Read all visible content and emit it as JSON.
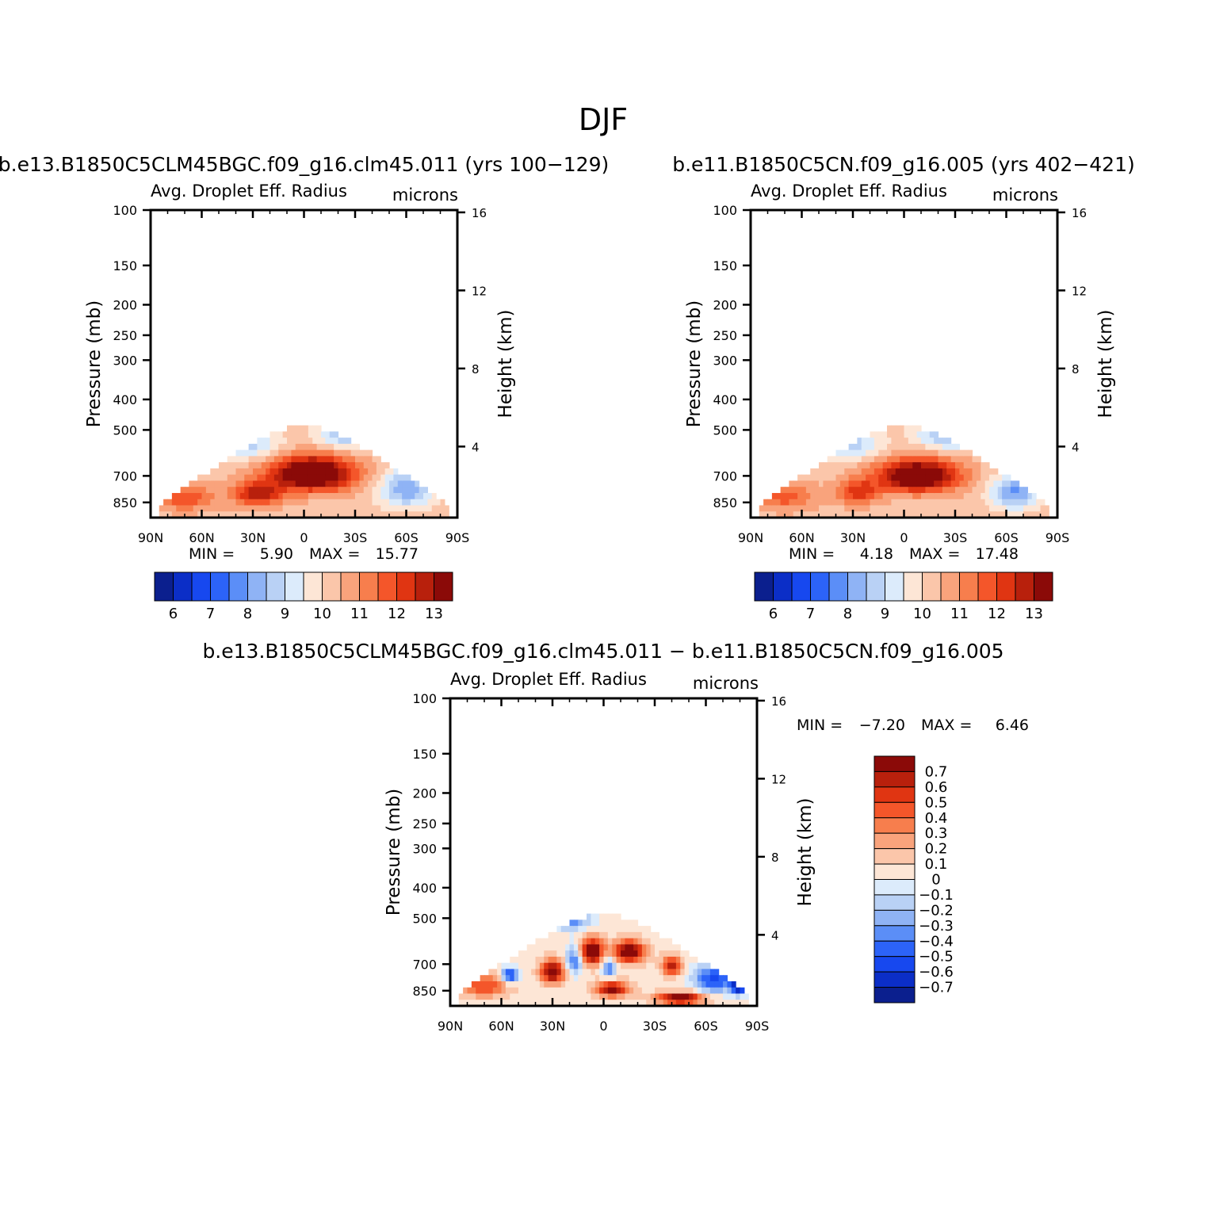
{
  "page_title": "DJF",
  "colors": {
    "main_scale": [
      "#0b1f8e",
      "#0b2ec7",
      "#1748ef",
      "#2c63f8",
      "#5b8ef7",
      "#8fb3f5",
      "#b9d1f5",
      "#dcebfb",
      "#fde6d6",
      "#fbc6aa",
      "#f9a37c",
      "#f77e4d",
      "#f4562a",
      "#e03512",
      "#b8200c",
      "#8b0a08"
    ],
    "diff_scale": [
      "#0b1f8e",
      "#0b2ec7",
      "#1748ef",
      "#2c63f8",
      "#5b8ef7",
      "#8fb3f5",
      "#b9d1f5",
      "#dcebfb",
      "#fde6d6",
      "#fbc6aa",
      "#f9a37c",
      "#f77e4d",
      "#f4562a",
      "#e03512",
      "#b8200c",
      "#8b0a08"
    ]
  },
  "chart_data": [
    {
      "type": "heatmap",
      "title": "b.e13.B1850C5CLM45BGC.f09_g16.clm45.011 (yrs 100−129)",
      "subtitle": "Avg. Droplet Eff. Radius",
      "units": "microns",
      "ylabel": "Pressure (mb)",
      "ylabel_right": "Height (km)",
      "xticks": [
        "90N",
        "60N",
        "30N",
        "0",
        "30S",
        "60S",
        "90S"
      ],
      "yticks": [
        "100",
        "150",
        "200",
        "250",
        "300",
        "400",
        "500",
        "700",
        "850"
      ],
      "yticks_right": [
        "16",
        "12",
        "8",
        "4"
      ],
      "xlim": [
        90,
        -90
      ],
      "ylim": [
        100,
        950
      ],
      "min_label": "MIN =",
      "min_value": "5.90",
      "max_label": "MAX =",
      "max_value": "15.77",
      "colorbar_labels": [
        "6",
        "7",
        "8",
        "9",
        "10",
        "11",
        "12",
        "13"
      ],
      "field": {
        "base": 10.3,
        "top_pressure": 480,
        "blobs": [
          {
            "lat": -5,
            "p": 690,
            "wl": 25,
            "wp": 90,
            "amp": 4.2
          },
          {
            "lat": 27,
            "p": 800,
            "wl": 14,
            "wp": 70,
            "amp": 2.6
          },
          {
            "lat": 70,
            "p": 820,
            "wl": 18,
            "wp": 80,
            "amp": 1.6
          },
          {
            "lat": -60,
            "p": 770,
            "wl": 16,
            "wp": 110,
            "amp": -2.2
          },
          {
            "lat": -25,
            "p": 520,
            "wl": 18,
            "wp": 60,
            "amp": -1.8
          },
          {
            "lat": 35,
            "p": 560,
            "wl": 22,
            "wp": 60,
            "amp": -1.6
          }
        ]
      }
    },
    {
      "type": "heatmap",
      "title": "b.e11.B1850C5CN.f09_g16.005 (yrs 402−421)",
      "subtitle": "Avg. Droplet Eff. Radius",
      "units": "microns",
      "ylabel": "Pressure (mb)",
      "ylabel_right": "Height (km)",
      "xticks": [
        "90N",
        "60N",
        "30N",
        "0",
        "30S",
        "60S",
        "90S"
      ],
      "yticks": [
        "100",
        "150",
        "200",
        "250",
        "300",
        "400",
        "500",
        "700",
        "850"
      ],
      "yticks_right": [
        "16",
        "12",
        "8",
        "4"
      ],
      "xlim": [
        90,
        -90
      ],
      "ylim": [
        100,
        950
      ],
      "min_label": "MIN =",
      "min_value": "4.18",
      "max_label": "MAX =",
      "max_value": "17.48",
      "colorbar_labels": [
        "6",
        "7",
        "8",
        "9",
        "10",
        "11",
        "12",
        "13"
      ],
      "field": {
        "base": 10.3,
        "top_pressure": 480,
        "blobs": [
          {
            "lat": -8,
            "p": 700,
            "wl": 24,
            "wp": 85,
            "amp": 4.0
          },
          {
            "lat": 27,
            "p": 790,
            "wl": 12,
            "wp": 70,
            "amp": 2.0
          },
          {
            "lat": 70,
            "p": 820,
            "wl": 18,
            "wp": 80,
            "amp": 1.4
          },
          {
            "lat": -65,
            "p": 790,
            "wl": 14,
            "wp": 100,
            "amp": -2.4
          },
          {
            "lat": -25,
            "p": 520,
            "wl": 18,
            "wp": 60,
            "amp": -1.9
          },
          {
            "lat": 35,
            "p": 560,
            "wl": 22,
            "wp": 60,
            "amp": -1.7
          }
        ]
      }
    },
    {
      "type": "heatmap",
      "title": "b.e13.B1850C5CLM45BGC.f09_g16.clm45.011 − b.e11.B1850C5CN.f09_g16.005",
      "subtitle": "Avg. Droplet Eff. Radius",
      "units": "microns",
      "ylabel": "Pressure (mb)",
      "ylabel_right": "Height (km)",
      "xticks": [
        "90N",
        "60N",
        "30N",
        "0",
        "30S",
        "60S",
        "90S"
      ],
      "yticks": [
        "100",
        "150",
        "200",
        "250",
        "300",
        "400",
        "500",
        "700",
        "850"
      ],
      "yticks_right": [
        "16",
        "12",
        "8",
        "4"
      ],
      "xlim": [
        90,
        -90
      ],
      "ylim": [
        100,
        950
      ],
      "min_label": "MIN =",
      "min_value": "−7.20",
      "max_label": "MAX =",
      "max_value": "6.46",
      "colorbar_labels": [
        "0.7",
        "0.6",
        "0.5",
        "0.4",
        "0.3",
        "0.2",
        "0.1",
        "0",
        "−0.1",
        "−0.2",
        "−0.3",
        "−0.4",
        "−0.5",
        "−0.6",
        "−0.7"
      ],
      "field": {
        "base": 0.05,
        "top_pressure": 480,
        "blobs": [
          {
            "lat": 7,
            "p": 640,
            "wl": 7,
            "wp": 60,
            "amp": 0.9
          },
          {
            "lat": -15,
            "p": 640,
            "wl": 9,
            "wp": 50,
            "amp": 0.9
          },
          {
            "lat": 30,
            "p": 740,
            "wl": 7,
            "wp": 60,
            "amp": 0.85
          },
          {
            "lat": -40,
            "p": 710,
            "wl": 6,
            "wp": 50,
            "amp": 0.6
          },
          {
            "lat": -45,
            "p": 900,
            "wl": 14,
            "wp": 40,
            "amp": 0.8
          },
          {
            "lat": -5,
            "p": 840,
            "wl": 10,
            "wp": 50,
            "amp": 0.7
          },
          {
            "lat": 70,
            "p": 820,
            "wl": 14,
            "wp": 70,
            "amp": 0.45
          },
          {
            "lat": 17,
            "p": 680,
            "wl": 5,
            "wp": 70,
            "amp": -0.5
          },
          {
            "lat": -3,
            "p": 720,
            "wl": 4,
            "wp": 60,
            "amp": -0.45
          },
          {
            "lat": 55,
            "p": 760,
            "wl": 5,
            "wp": 40,
            "amp": -0.7
          },
          {
            "lat": -65,
            "p": 780,
            "wl": 12,
            "wp": 80,
            "amp": -0.6
          },
          {
            "lat": -80,
            "p": 820,
            "wl": 5,
            "wp": 50,
            "amp": -0.9
          },
          {
            "lat": 20,
            "p": 500,
            "wl": 12,
            "wp": 40,
            "amp": -0.5
          }
        ]
      }
    }
  ]
}
